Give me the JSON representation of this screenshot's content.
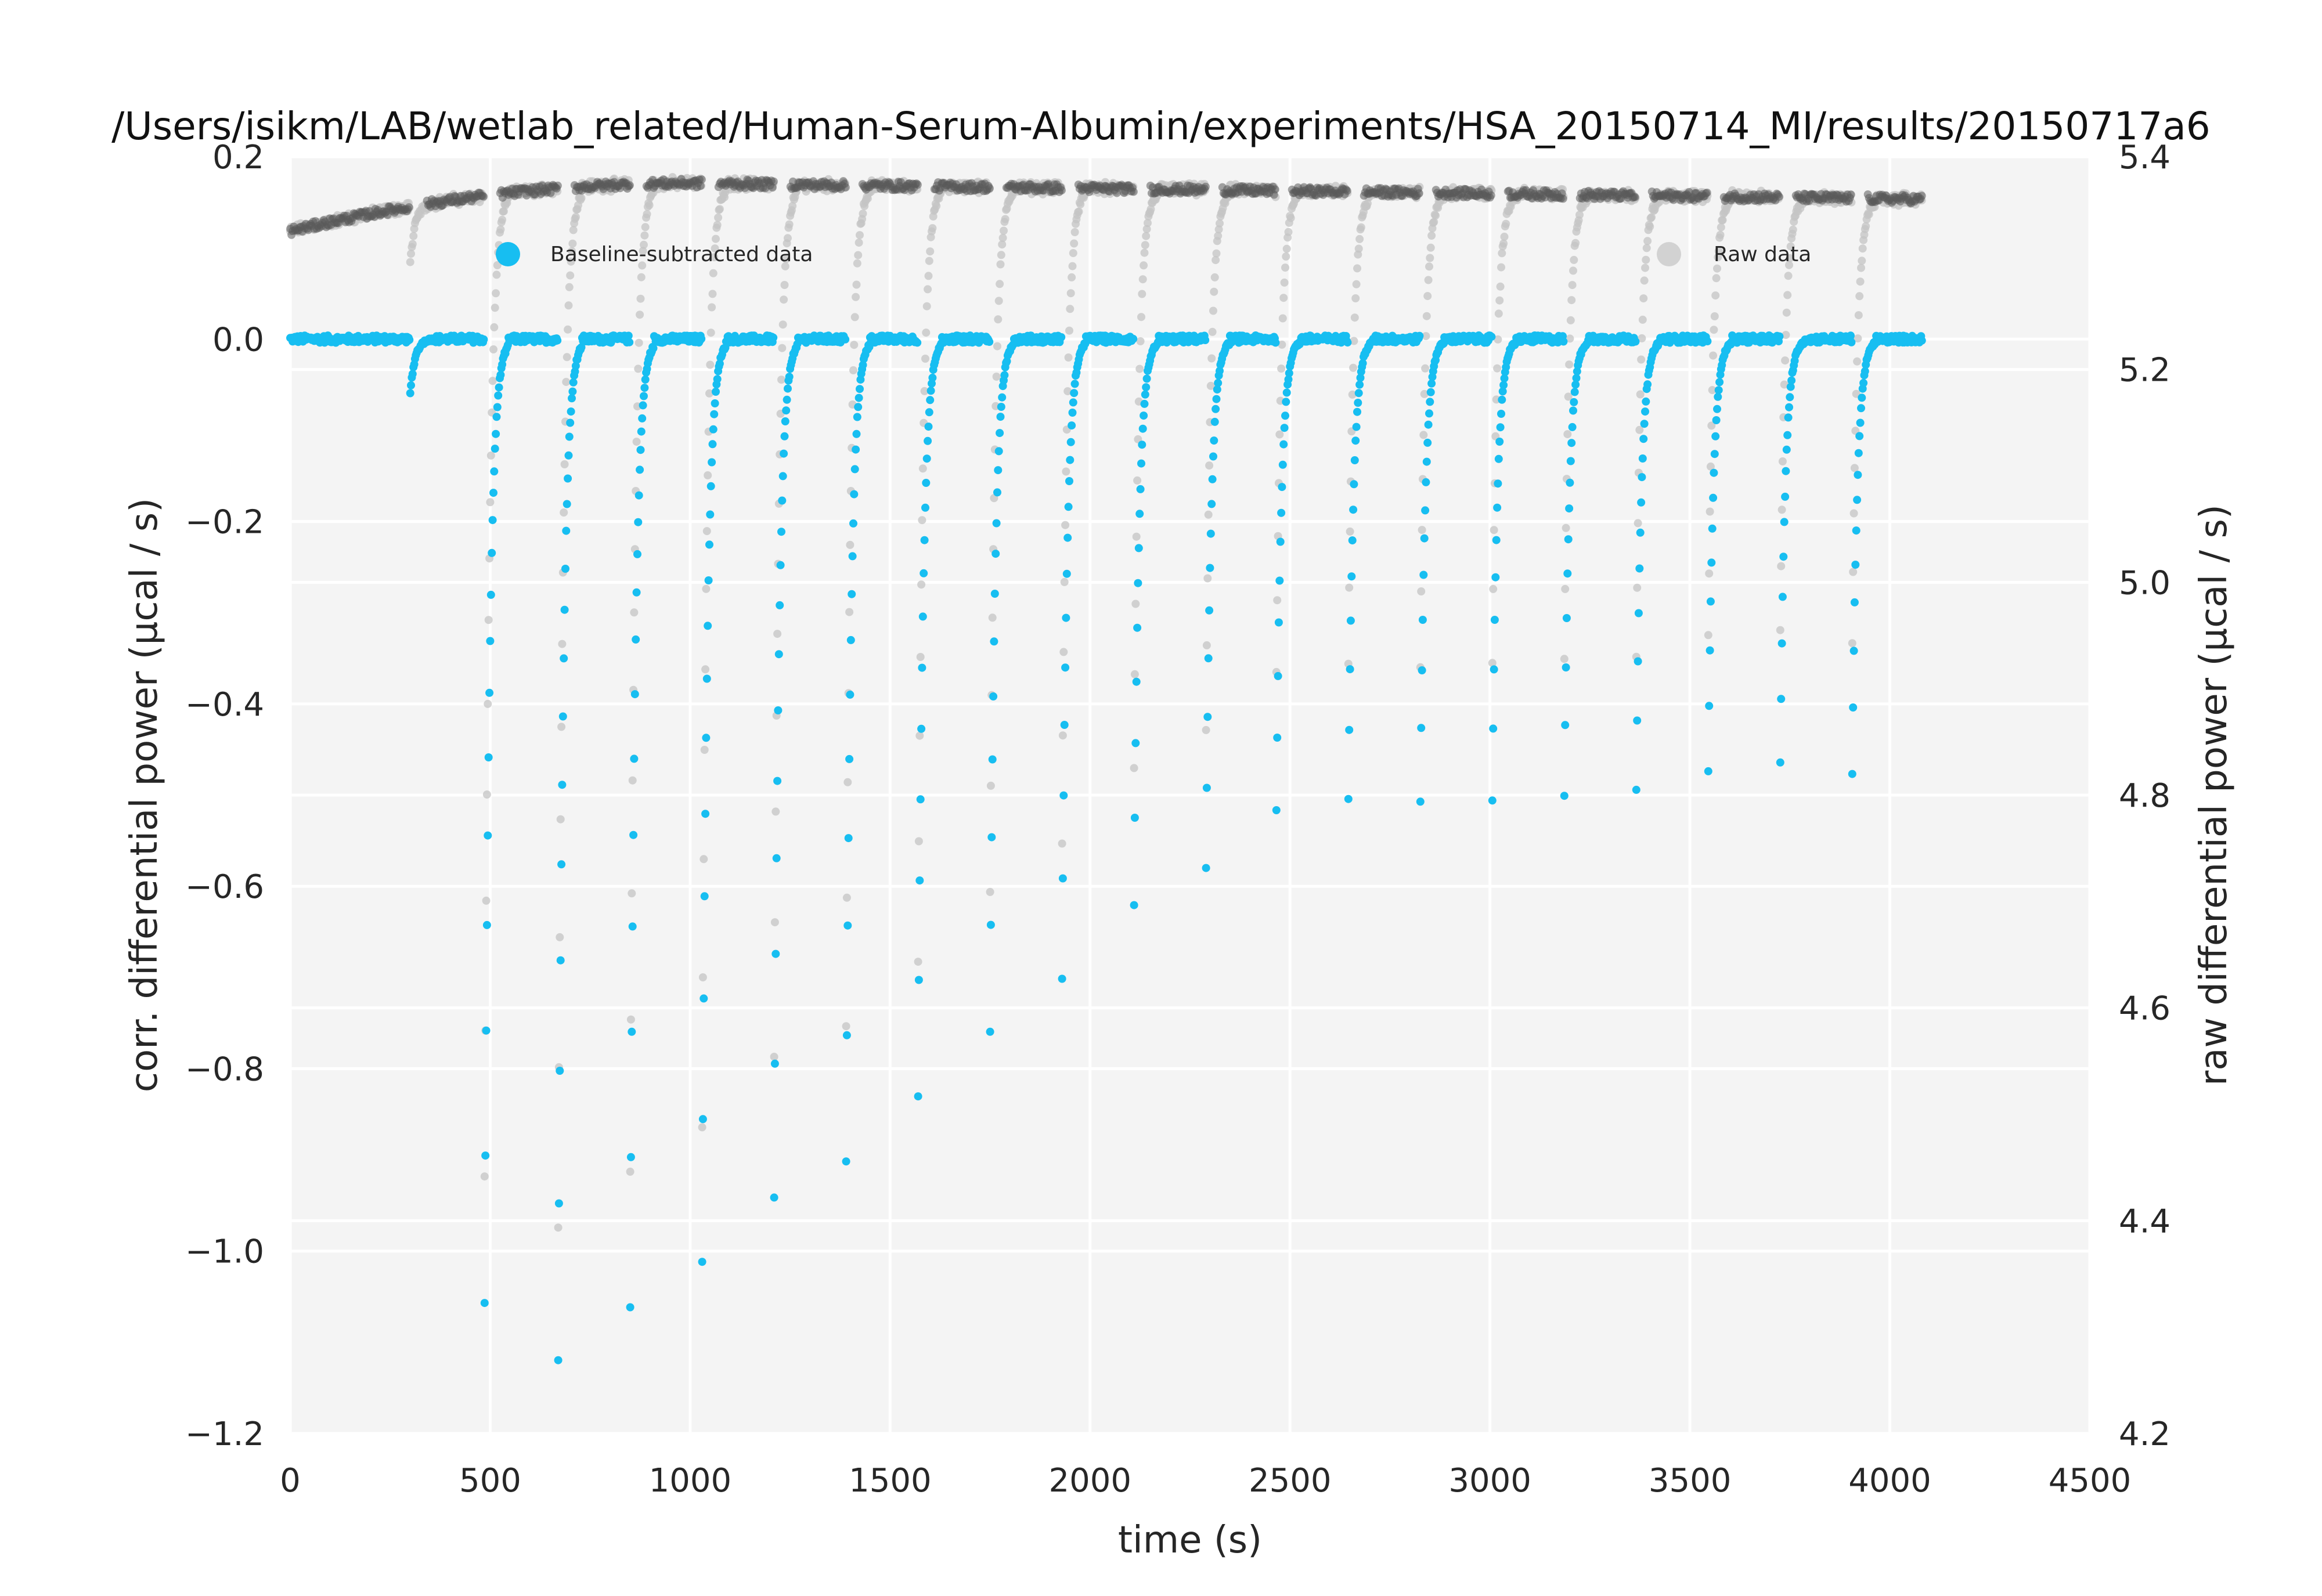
{
  "chart_data": {
    "type": "scatter",
    "title": "/Users/isikm/LAB/wetlab_related/Human-Serum-Albumin/experiments/HSA_20150714_MI/results/20150717a6",
    "xlabel": "time (s)",
    "ylabel_left": "corr. differential power (μcal / s)",
    "ylabel_right": "raw differential power (μcal / s)",
    "xlim": [
      0,
      4500
    ],
    "ylim_left": [
      -1.2,
      0.2
    ],
    "ylim_right": [
      4.2,
      5.4
    ],
    "x_ticks": [
      "0",
      "500",
      "1000",
      "1500",
      "2000",
      "2500",
      "3000",
      "3500",
      "4000",
      "4500"
    ],
    "y_ticks_left": [
      "0.2",
      "0.0",
      "−0.2",
      "−0.4",
      "−0.6",
      "−0.8",
      "−1.0",
      "−1.2"
    ],
    "y_ticks_right": [
      "5.4",
      "5.2",
      "5.0",
      "4.8",
      "4.6",
      "4.4",
      "4.2"
    ],
    "grid": true,
    "legend_placement": "top",
    "baseline_level": 0.0,
    "raw_baseline": {
      "start": 5.33,
      "peak_time": 1000,
      "peak": 5.375,
      "end": 5.36,
      "end_time": 4080
    },
    "series": [
      {
        "name": "Baseline-subtracted data",
        "color": "#17bef1",
        "axis": "left"
      },
      {
        "name": "Raw data",
        "color": "#c8c8c8",
        "axis": "right"
      }
    ],
    "injections": [
      {
        "time": 300,
        "min": -0.06
      },
      {
        "time": 485,
        "min": -1.15
      },
      {
        "time": 670,
        "min": -1.12
      },
      {
        "time": 850,
        "min": -1.06
      },
      {
        "time": 1030,
        "min": -1.01
      },
      {
        "time": 1210,
        "min": -0.94
      },
      {
        "time": 1390,
        "min": -0.9
      },
      {
        "time": 1570,
        "min": -0.83
      },
      {
        "time": 1750,
        "min": -0.76
      },
      {
        "time": 1930,
        "min": -0.7
      },
      {
        "time": 2110,
        "min": -0.62
      },
      {
        "time": 2290,
        "min": -0.58
      },
      {
        "time": 2465,
        "min": -0.56
      },
      {
        "time": 2645,
        "min": -0.55
      },
      {
        "time": 2825,
        "min": -0.55
      },
      {
        "time": 3005,
        "min": -0.55
      },
      {
        "time": 3185,
        "min": -0.545
      },
      {
        "time": 3365,
        "min": -0.535
      },
      {
        "time": 3545,
        "min": -0.515
      },
      {
        "time": 3725,
        "min": -0.505
      },
      {
        "time": 3905,
        "min": -0.52
      }
    ],
    "t_end": 4080
  }
}
